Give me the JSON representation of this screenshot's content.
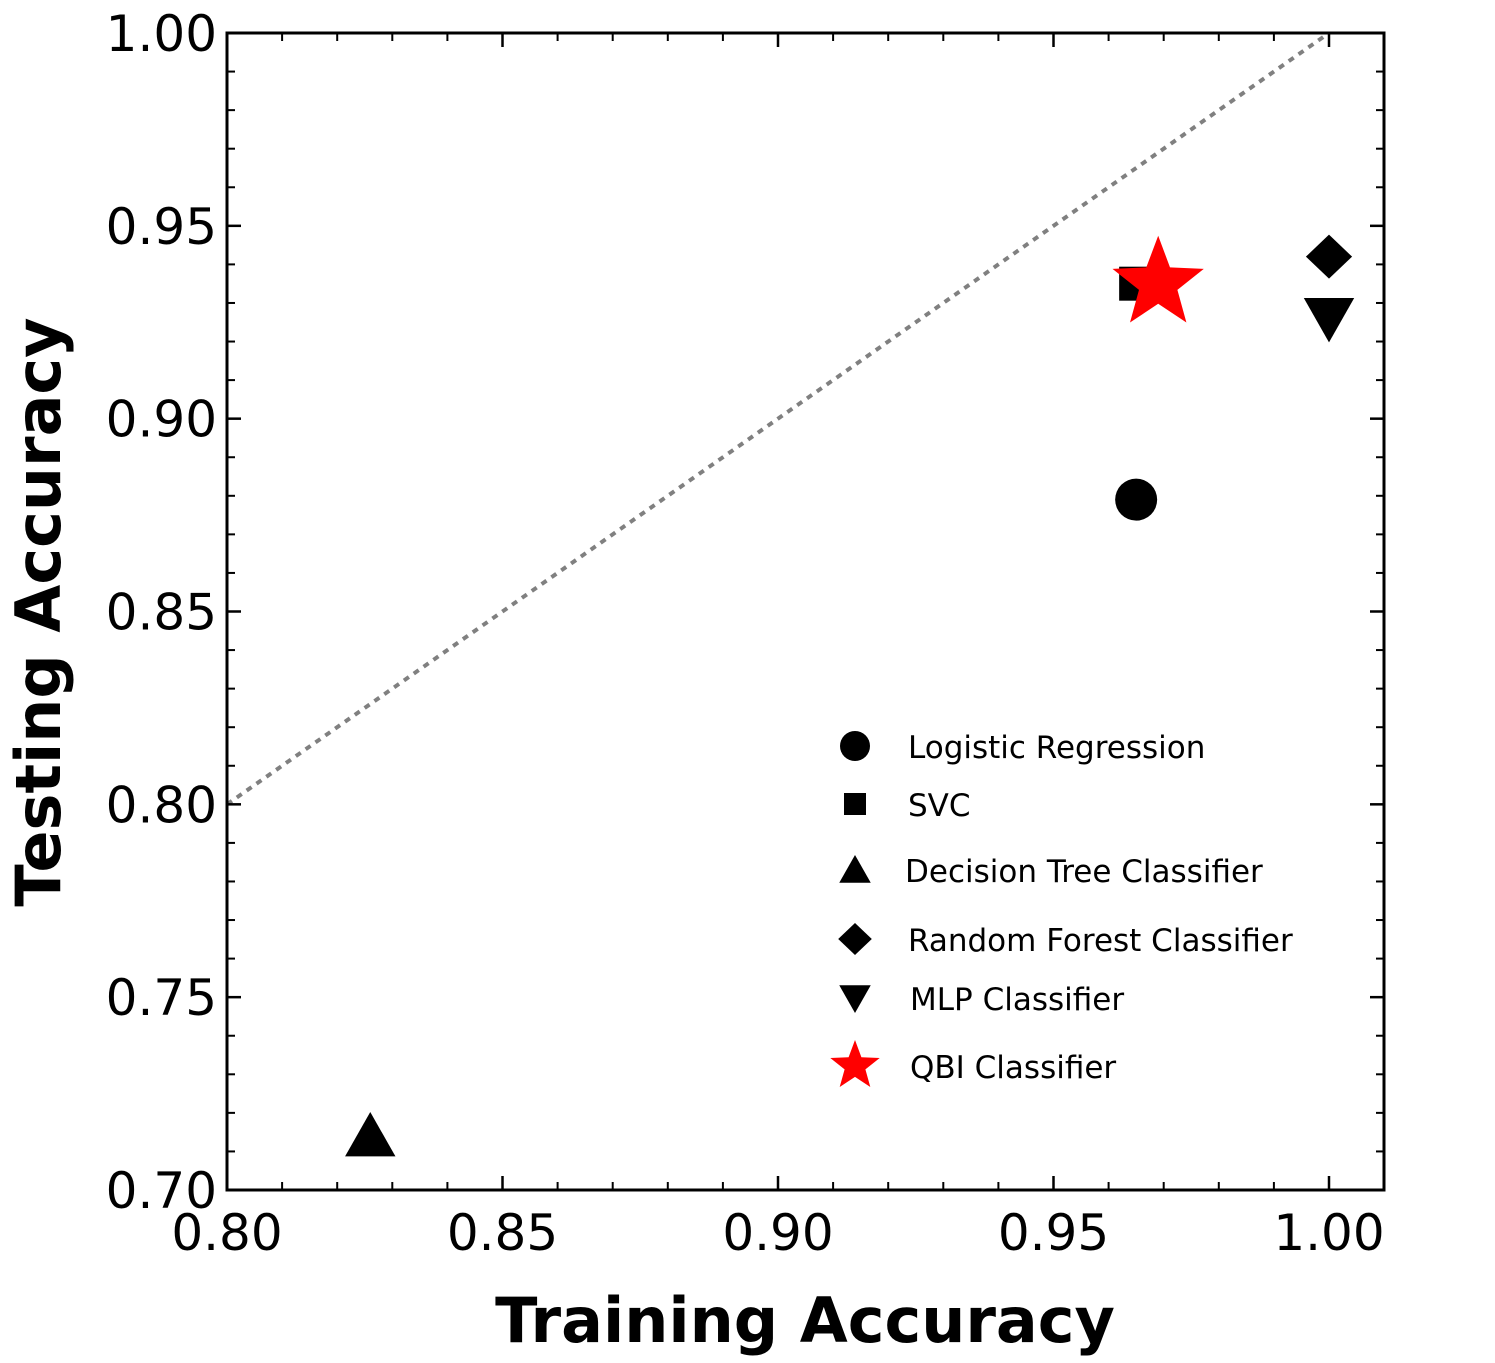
{
  "chart_data": {
    "type": "scatter",
    "xlabel": "Training Accuracy",
    "ylabel": "Testing Accuracy",
    "xlim": [
      0.8,
      1.01
    ],
    "ylim": [
      0.7,
      1.0
    ],
    "x_ticks": [
      "0.80",
      "0.85",
      "0.90",
      "0.95",
      "1.00"
    ],
    "y_ticks": [
      "0.70",
      "0.75",
      "0.80",
      "0.85",
      "0.90",
      "0.95",
      "1.00"
    ],
    "reference_line": {
      "style": "dotted",
      "color": "#808080",
      "from": [
        0.8,
        0.8
      ],
      "to": [
        1.0,
        1.0
      ]
    },
    "legend_position": "lower-right",
    "grid": false,
    "series": [
      {
        "name": "Logistic Regression",
        "marker": "circle",
        "color": "#000000",
        "x": 0.965,
        "y": 0.879
      },
      {
        "name": "SVC",
        "marker": "square",
        "color": "#000000",
        "x": 0.965,
        "y": 0.935
      },
      {
        "name": "Decision Tree Classifier",
        "marker": "triangle-up",
        "color": "#000000",
        "x": 0.826,
        "y": 0.714
      },
      {
        "name": "Random Forest Classifier",
        "marker": "diamond",
        "color": "#000000",
        "x": 1.0,
        "y": 0.942
      },
      {
        "name": "MLP Classifier",
        "marker": "triangle-down",
        "color": "#000000",
        "x": 1.0,
        "y": 0.926
      },
      {
        "name": "QBI Classifier",
        "marker": "star",
        "color": "#ff0000",
        "x": 0.969,
        "y": 0.935
      }
    ]
  }
}
